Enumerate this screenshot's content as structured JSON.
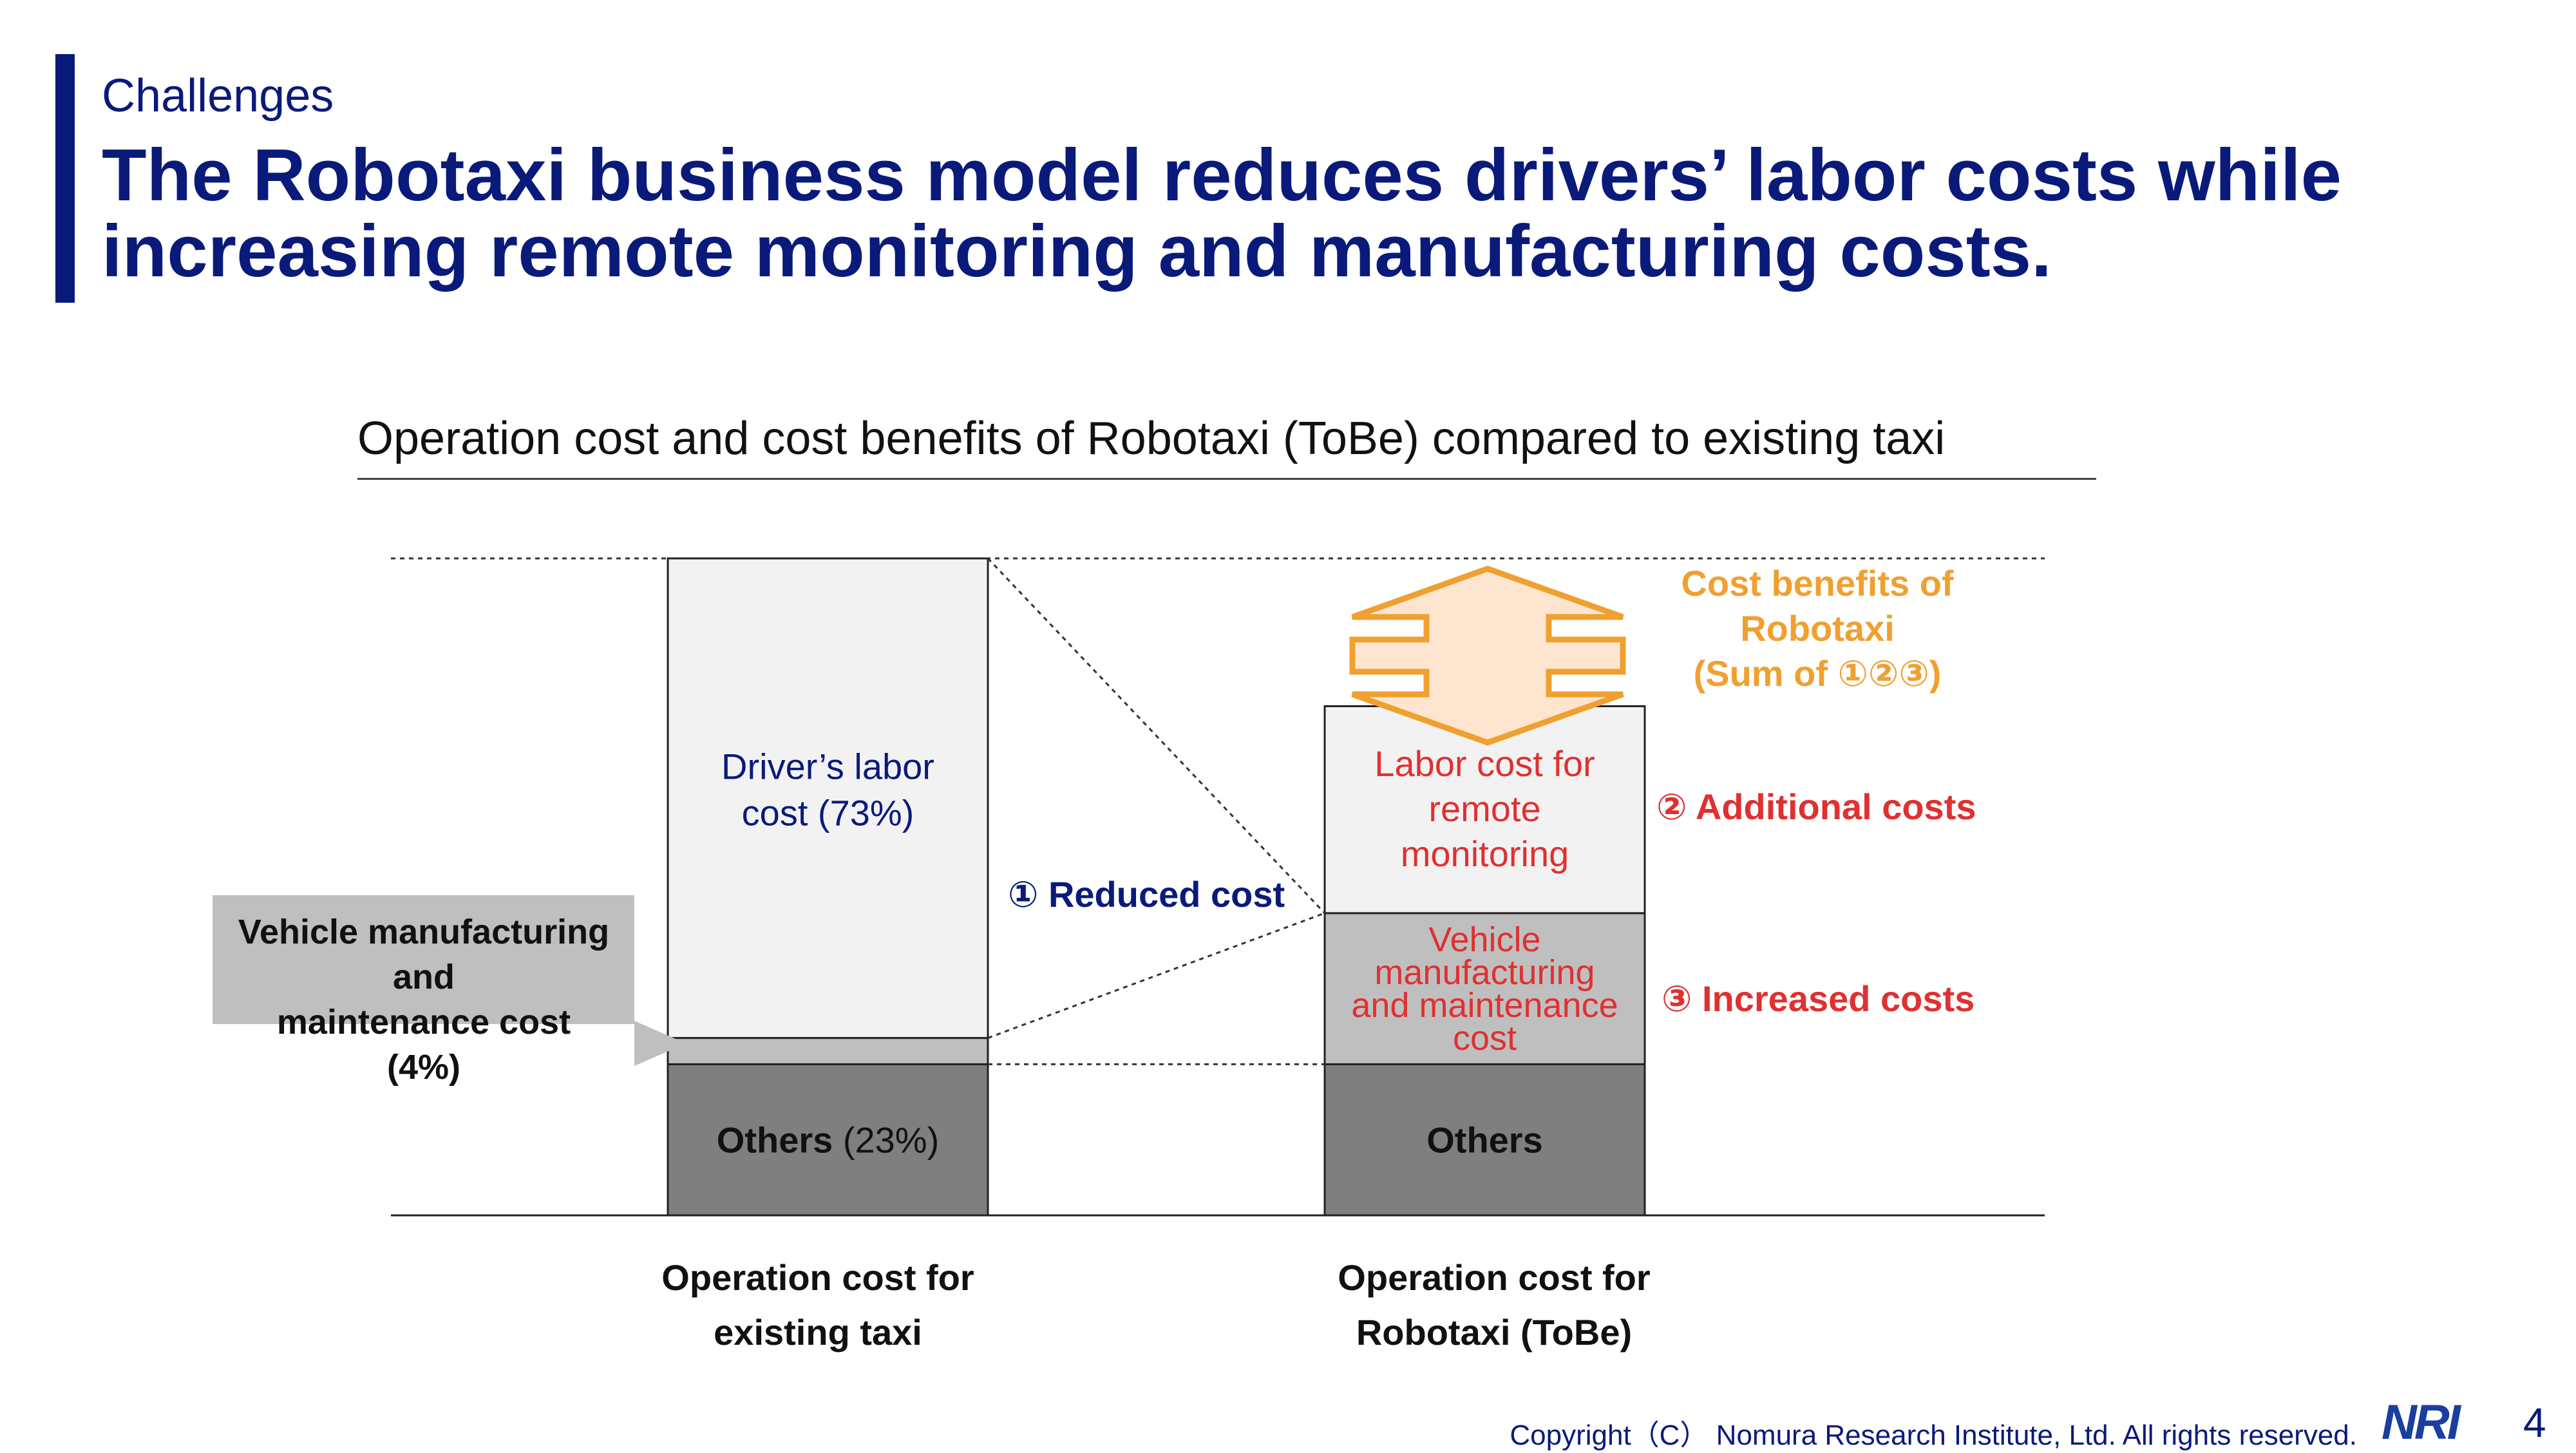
{
  "header": {
    "section": "Challenges",
    "title_line1": "The Robotaxi business model reduces drivers’ labor costs while",
    "title_line2": "increasing remote monitoring and manufacturing costs."
  },
  "chart_data": {
    "type": "bar",
    "stacked": true,
    "title": "Operation cost and cost benefits of Robotaxi (ToBe) compared to existing taxi",
    "categories": [
      "Operation cost for existing taxi",
      "Operation cost for Robotaxi (ToBe)"
    ],
    "category_lines": [
      [
        "Operation cost for",
        "existing taxi"
      ],
      [
        "Operation cost for",
        "Robotaxi (ToBe)"
      ]
    ],
    "unit": "% of existing taxi operation cost",
    "ylim": [
      0,
      100
    ],
    "series": [
      {
        "key": "others",
        "values": [
          23,
          23
        ]
      },
      {
        "key": "vehicle",
        "values": [
          4,
          23
        ]
      },
      {
        "key": "labor",
        "values": [
          73,
          31.5
        ]
      }
    ],
    "segment_labels": {
      "existing_labor": [
        "Driver’s labor",
        "cost (73%)"
      ],
      "existing_others_bold": "Others",
      "existing_others_pct": " (23%)",
      "robotaxi_labor": [
        "Labor cost for",
        "remote",
        "monitoring"
      ],
      "robotaxi_vehicle": [
        "Vehicle",
        "manufacturing",
        "and maintenance",
        "cost"
      ],
      "robotaxi_others": "Others"
    },
    "callout_vehicle": [
      "Vehicle manufacturing",
      "and",
      "maintenance cost",
      "(4%)"
    ],
    "annotations": {
      "reduced": "① Reduced cost",
      "additional": "② Additional costs",
      "increased": "③ Increased costs",
      "benefits": [
        "Cost benefits of",
        "Robotaxi",
        "(Sum of ①②③)"
      ]
    },
    "colors": {
      "labor": "#f2f2f2",
      "vehicle": "#bfbfbf",
      "others": "#7f7f7f",
      "navy": "#0a1a7a",
      "red": "#e03030",
      "orange": "#f0a030",
      "arrow_fill": "#fde5cf"
    }
  },
  "footer": {
    "copyright": "Copyright（C） Nomura Research Institute, Ltd. All rights reserved.",
    "logo": "NRI",
    "page": "4"
  }
}
